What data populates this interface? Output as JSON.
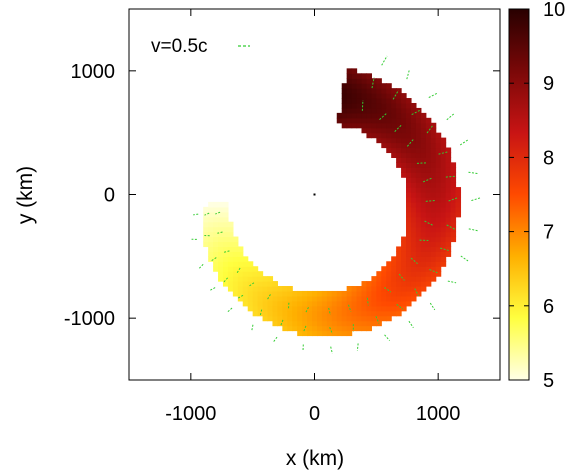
{
  "chart_data": {
    "type": "heatmap",
    "title": "",
    "xlabel": "x (km)",
    "ylabel": "y (km)",
    "xlim": [
      -1500,
      1500
    ],
    "ylim": [
      -1500,
      1500
    ],
    "x_ticks": [
      -1000,
      0,
      1000
    ],
    "y_ticks": [
      -1000,
      0,
      1000
    ],
    "colorbar": {
      "range": [
        5,
        10
      ],
      "ticks": [
        5,
        6,
        7,
        8,
        9,
        10
      ],
      "colors": [
        "#ffffe6",
        "#ffff40",
        "#ffb000",
        "#ff4a00",
        "#c81414",
        "#7a0808",
        "#280000"
      ]
    },
    "legend": {
      "label": "v=0.5c",
      "color": "#33cc33",
      "position": "top-left"
    },
    "center_marker": {
      "x": 0,
      "y": 0
    },
    "field": {
      "description_type": "crescent",
      "inner_radius_km": 650,
      "outer_radius_km": 1100,
      "shift_km": [
        70,
        -70
      ],
      "theta_start_deg": -180,
      "theta_end_deg": 80,
      "value_min": 5,
      "value_max": 9.8,
      "velocity_direction": "outward",
      "velocity_speed_fraction_c": [
        0.15,
        0.5
      ]
    }
  }
}
